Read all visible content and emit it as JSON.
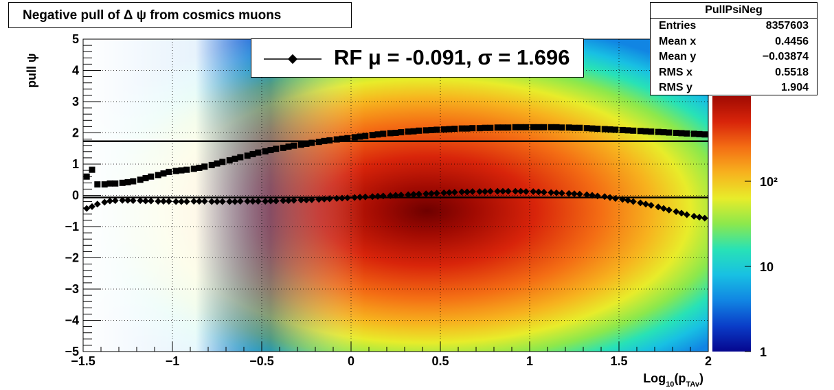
{
  "title": "Negative pull of Δ ψ from cosmics muons",
  "stats": {
    "name": "PullPsiNeg",
    "rows": [
      {
        "label": "Entries",
        "value": "8357603"
      },
      {
        "label": "Mean x",
        "value": "0.4456"
      },
      {
        "label": "Mean y",
        "value": "−0.03874"
      },
      {
        "label": "RMS x",
        "value": "0.5518"
      },
      {
        "label": "RMS y",
        "value": "1.904"
      }
    ]
  },
  "legend": {
    "entry": "RF μ = -0.091, σ =   1.696"
  },
  "colors": {
    "profile_markers": "#000000",
    "palette": [
      "#06068e",
      "#0a3dc8",
      "#1185e3",
      "#18c0e3",
      "#28e2b6",
      "#8ce84c",
      "#e8ec2a",
      "#f7b21e",
      "#f46e14",
      "#d8240a",
      "#a00a02",
      "#6e0000"
    ]
  },
  "chart_data": {
    "type": "heatmap",
    "xlabel": "Log10(pTAv)",
    "ylabel": "pull ψ",
    "xlim": [
      -1.5,
      2
    ],
    "ylim": [
      -5,
      5
    ],
    "x_ticks": [
      "−1.5",
      "−1",
      "−0.5",
      "0",
      "0.5",
      "1",
      "1.5",
      "2"
    ],
    "y_ticks": [
      "−5",
      "−4",
      "−3",
      "−2",
      "−1",
      "0",
      "1",
      "2",
      "3",
      "4",
      "5"
    ],
    "z_scale": "log",
    "z_ticks": [
      "1",
      "10",
      "10²"
    ],
    "grid": true,
    "reference_lines": [
      {
        "y": 1.73
      },
      {
        "y": -0.07
      }
    ],
    "series": [
      {
        "name": "RF μ = -0.091, σ =   1.696",
        "marker": "diamond",
        "x": [
          -1.48,
          -1.45,
          -1.42,
          -1.38,
          -1.35,
          -1.32,
          -1.28,
          -1.25,
          -1.22,
          -1.18,
          -1.15,
          -1.12,
          -1.08,
          -1.05,
          -1.02,
          -0.98,
          -0.95,
          -0.92,
          -0.88,
          -0.85,
          -0.82,
          -0.78,
          -0.75,
          -0.72,
          -0.68,
          -0.65,
          -0.62,
          -0.58,
          -0.55,
          -0.52,
          -0.48,
          -0.45,
          -0.42,
          -0.38,
          -0.35,
          -0.32,
          -0.28,
          -0.25,
          -0.22,
          -0.18,
          -0.15,
          -0.12,
          -0.08,
          -0.05,
          -0.02,
          0.02,
          0.05,
          0.08,
          0.12,
          0.15,
          0.18,
          0.22,
          0.25,
          0.28,
          0.32,
          0.35,
          0.38,
          0.42,
          0.45,
          0.48,
          0.52,
          0.55,
          0.58,
          0.62,
          0.65,
          0.68,
          0.72,
          0.75,
          0.78,
          0.82,
          0.85,
          0.88,
          0.92,
          0.95,
          0.98,
          1.02,
          1.05,
          1.08,
          1.12,
          1.15,
          1.18,
          1.22,
          1.25,
          1.28,
          1.32,
          1.35,
          1.38,
          1.42,
          1.45,
          1.48,
          1.52,
          1.55,
          1.58,
          1.62,
          1.65,
          1.68,
          1.72,
          1.75,
          1.78,
          1.82,
          1.85,
          1.88,
          1.92,
          1.95,
          1.98
        ],
        "y": [
          -0.42,
          -0.36,
          -0.28,
          -0.22,
          -0.18,
          -0.17,
          -0.16,
          -0.16,
          -0.17,
          -0.17,
          -0.18,
          -0.18,
          -0.19,
          -0.19,
          -0.19,
          -0.2,
          -0.2,
          -0.2,
          -0.19,
          -0.19,
          -0.19,
          -0.2,
          -0.2,
          -0.2,
          -0.2,
          -0.2,
          -0.19,
          -0.19,
          -0.19,
          -0.19,
          -0.19,
          -0.18,
          -0.18,
          -0.17,
          -0.17,
          -0.16,
          -0.15,
          -0.15,
          -0.14,
          -0.13,
          -0.12,
          -0.11,
          -0.1,
          -0.09,
          -0.08,
          -0.07,
          -0.06,
          -0.05,
          -0.04,
          -0.03,
          -0.02,
          -0.01,
          0.0,
          0.01,
          0.02,
          0.03,
          0.04,
          0.05,
          0.06,
          0.07,
          0.08,
          0.09,
          0.1,
          0.11,
          0.11,
          0.12,
          0.12,
          0.12,
          0.13,
          0.13,
          0.13,
          0.13,
          0.13,
          0.13,
          0.12,
          0.12,
          0.11,
          0.1,
          0.09,
          0.08,
          0.07,
          0.06,
          0.05,
          0.04,
          0.02,
          0.0,
          -0.02,
          -0.04,
          -0.07,
          -0.1,
          -0.13,
          -0.16,
          -0.2,
          -0.24,
          -0.28,
          -0.32,
          -0.37,
          -0.42,
          -0.47,
          -0.52,
          -0.57,
          -0.62,
          -0.67,
          -0.7,
          -0.73
        ]
      },
      {
        "name": "",
        "marker": "square",
        "x": [
          -1.48,
          -1.45,
          -1.42,
          -1.38,
          -1.35,
          -1.32,
          -1.28,
          -1.25,
          -1.22,
          -1.18,
          -1.15,
          -1.12,
          -1.08,
          -1.05,
          -1.02,
          -0.98,
          -0.95,
          -0.92,
          -0.88,
          -0.85,
          -0.82,
          -0.78,
          -0.75,
          -0.72,
          -0.68,
          -0.65,
          -0.62,
          -0.58,
          -0.55,
          -0.52,
          -0.48,
          -0.45,
          -0.42,
          -0.38,
          -0.35,
          -0.32,
          -0.28,
          -0.25,
          -0.22,
          -0.18,
          -0.15,
          -0.12,
          -0.08,
          -0.05,
          -0.02,
          0.02,
          0.05,
          0.08,
          0.12,
          0.15,
          0.18,
          0.22,
          0.25,
          0.28,
          0.32,
          0.35,
          0.38,
          0.42,
          0.45,
          0.48,
          0.52,
          0.55,
          0.58,
          0.62,
          0.65,
          0.68,
          0.72,
          0.75,
          0.78,
          0.82,
          0.85,
          0.88,
          0.92,
          0.95,
          0.98,
          1.02,
          1.05,
          1.08,
          1.12,
          1.15,
          1.18,
          1.22,
          1.25,
          1.28,
          1.32,
          1.35,
          1.38,
          1.42,
          1.45,
          1.48,
          1.52,
          1.55,
          1.58,
          1.62,
          1.65,
          1.68,
          1.72,
          1.75,
          1.78,
          1.82,
          1.85,
          1.88,
          1.92,
          1.95,
          1.98
        ],
        "y": [
          0.6,
          0.82,
          0.35,
          0.35,
          0.38,
          0.38,
          0.4,
          0.42,
          0.45,
          0.5,
          0.55,
          0.6,
          0.65,
          0.7,
          0.75,
          0.78,
          0.8,
          0.82,
          0.85,
          0.88,
          0.92,
          0.97,
          1.02,
          1.07,
          1.12,
          1.17,
          1.22,
          1.27,
          1.32,
          1.37,
          1.41,
          1.45,
          1.49,
          1.52,
          1.56,
          1.59,
          1.62,
          1.65,
          1.68,
          1.71,
          1.74,
          1.76,
          1.79,
          1.81,
          1.83,
          1.86,
          1.88,
          1.9,
          1.93,
          1.95,
          1.97,
          1.99,
          2.0,
          2.02,
          2.04,
          2.05,
          2.07,
          2.08,
          2.09,
          2.1,
          2.11,
          2.12,
          2.13,
          2.14,
          2.14,
          2.15,
          2.15,
          2.16,
          2.16,
          2.17,
          2.17,
          2.17,
          2.18,
          2.18,
          2.18,
          2.18,
          2.18,
          2.18,
          2.18,
          2.18,
          2.17,
          2.17,
          2.16,
          2.16,
          2.15,
          2.14,
          2.13,
          2.12,
          2.11,
          2.1,
          2.09,
          2.08,
          2.07,
          2.06,
          2.05,
          2.04,
          2.03,
          2.02,
          2.01,
          2.0,
          1.99,
          1.98,
          1.97,
          1.96,
          1.95
        ]
      }
    ]
  }
}
